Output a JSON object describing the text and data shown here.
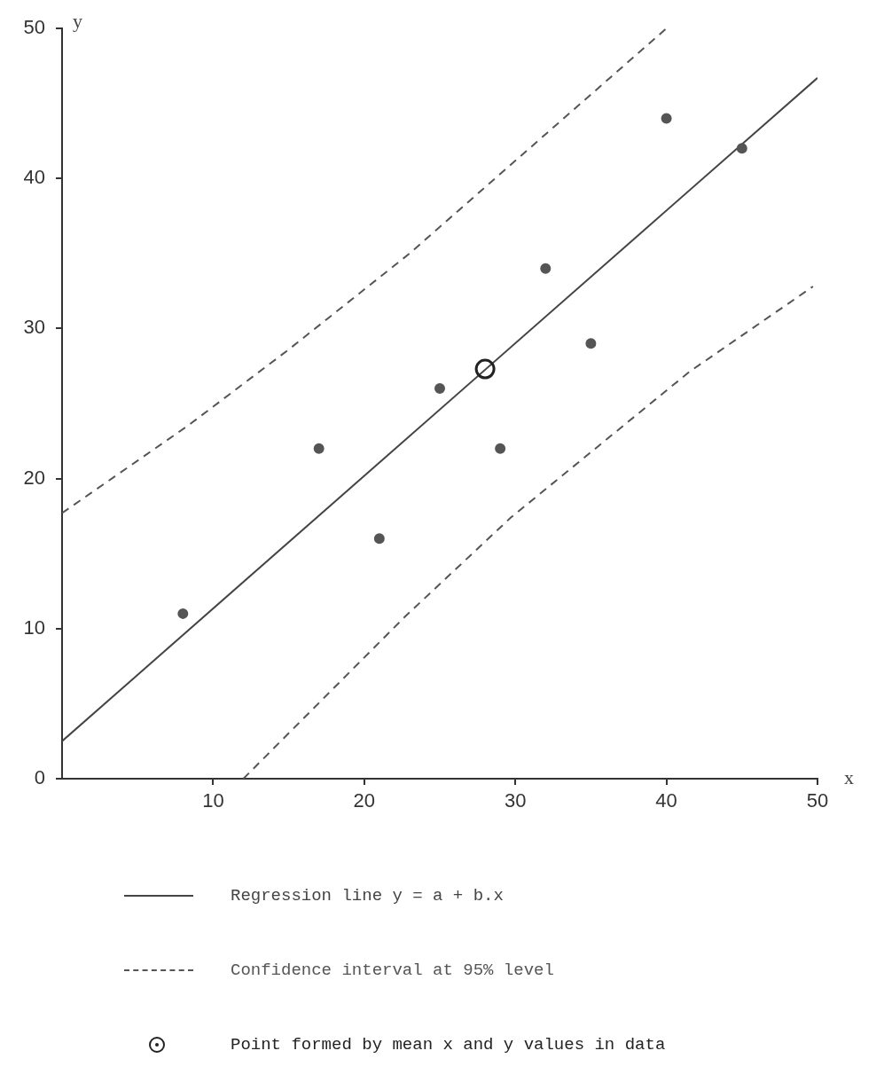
{
  "chart_data": {
    "type": "scatter",
    "xlabel": "x",
    "ylabel": "y",
    "xlim": [
      0,
      50
    ],
    "xticks": [
      10,
      20,
      30,
      40,
      50
    ],
    "ylim": [
      0,
      50
    ],
    "yticks": [
      0,
      10,
      20,
      30,
      40,
      50
    ],
    "grid": false,
    "legend": "bottom",
    "series": [
      {
        "type": "scatter",
        "color": "#555555",
        "marker": "circle",
        "x": [
          8,
          17,
          21,
          25,
          29,
          32,
          35,
          40,
          45
        ],
        "values": [
          11,
          22,
          16,
          26,
          22,
          34,
          29,
          44,
          42
        ]
      },
      {
        "type": "line",
        "name": "Regression line  y = a + b.x",
        "color": "#444444",
        "marker": "none",
        "line_style": "solid",
        "x": [
          0,
          50
        ],
        "values": [
          2.5,
          46.7
        ]
      },
      {
        "type": "line",
        "name": "Confidence interval at 95% level",
        "color": "#555555",
        "marker": "none",
        "line_style": "dashed",
        "x": [
          0,
          8.3,
          15,
          23,
          27.3,
          40
        ],
        "values": [
          17.7,
          23.5,
          28.6,
          35,
          38.8,
          50
        ]
      },
      {
        "type": "line",
        "color": "#555555",
        "marker": "none",
        "line_style": "dashed",
        "x": [
          12,
          22.7,
          29.7,
          41.5,
          49.7
        ],
        "values": [
          0,
          10.8,
          17.4,
          27.1,
          32.8
        ]
      },
      {
        "type": "scatter",
        "name": "Point formed by mean x and y values in data",
        "color": "#222222",
        "marker": "circle",
        "x": [
          28
        ],
        "values": [
          27.3
        ]
      }
    ]
  }
}
